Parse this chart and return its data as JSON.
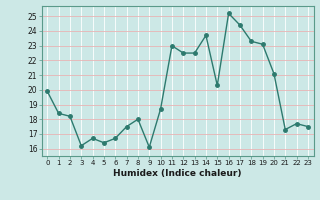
{
  "x": [
    0,
    1,
    2,
    3,
    4,
    5,
    6,
    7,
    8,
    9,
    10,
    11,
    12,
    13,
    14,
    15,
    16,
    17,
    18,
    19,
    20,
    21,
    22,
    23
  ],
  "y": [
    19.9,
    18.4,
    18.2,
    16.2,
    16.7,
    16.4,
    16.7,
    17.5,
    18.0,
    16.1,
    18.7,
    23.0,
    22.5,
    22.5,
    23.7,
    20.3,
    25.2,
    24.4,
    23.3,
    23.1,
    21.1,
    17.3,
    17.7,
    17.5
  ],
  "xlabel": "Humidex (Indice chaleur)",
  "ylim": [
    15.5,
    25.7
  ],
  "xlim": [
    -0.5,
    23.5
  ],
  "yticks": [
    16,
    17,
    18,
    19,
    20,
    21,
    22,
    23,
    24,
    25
  ],
  "xticks": [
    0,
    1,
    2,
    3,
    4,
    5,
    6,
    7,
    8,
    9,
    10,
    11,
    12,
    13,
    14,
    15,
    16,
    17,
    18,
    19,
    20,
    21,
    22,
    23
  ],
  "line_color": "#2d7a6e",
  "marker_color": "#2d7a6e",
  "bg_color": "#cce8e6",
  "grid_color_h": "#e8b4b4",
  "grid_color_v": "#ffffff",
  "border_color": "#5a9a8a",
  "tick_label_color": "#1a1a1a",
  "xlabel_color": "#1a1a1a"
}
